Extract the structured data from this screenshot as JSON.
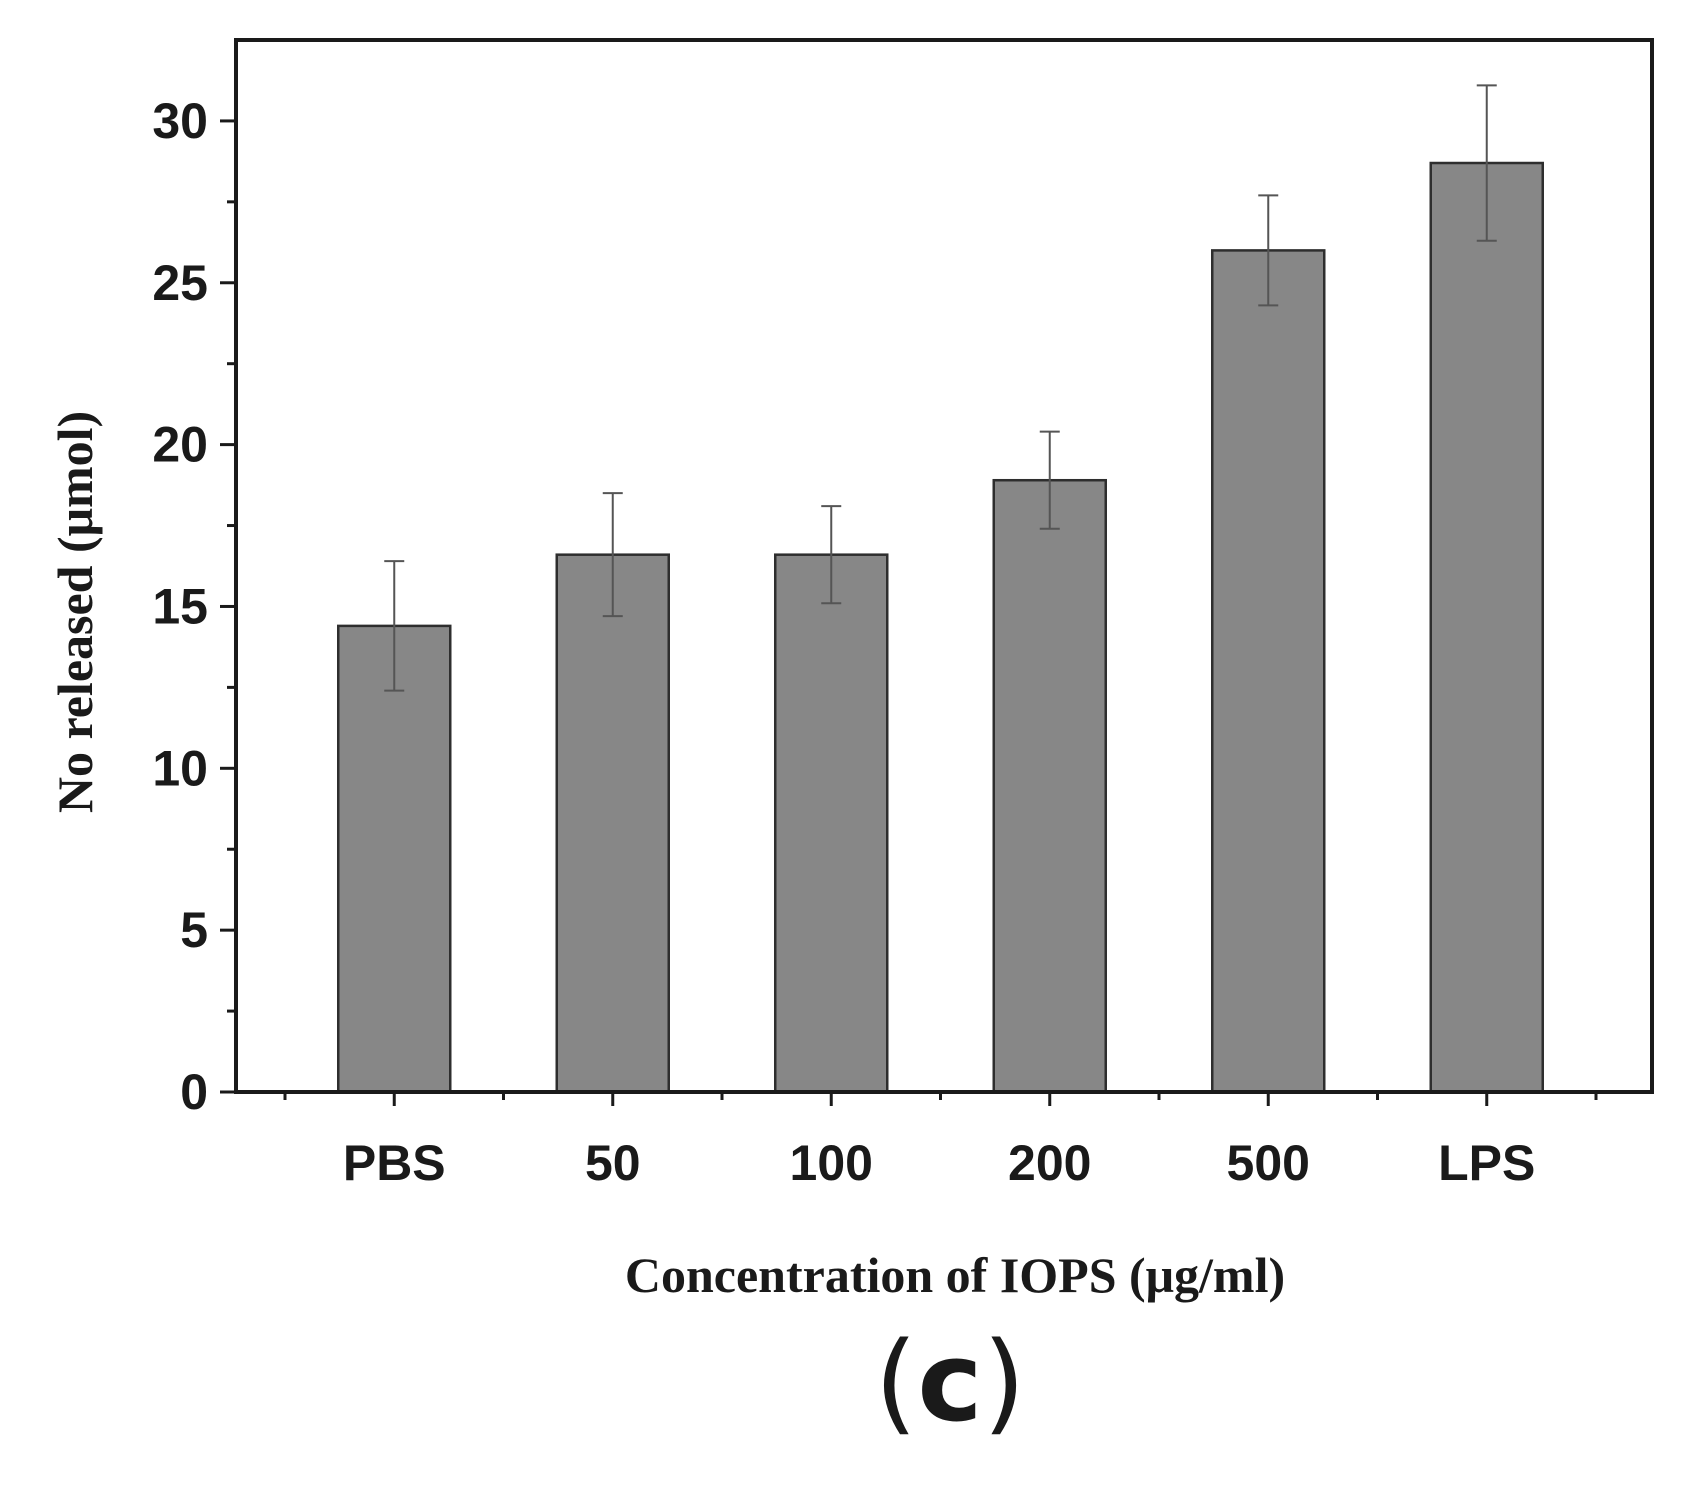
{
  "chart_data": {
    "type": "bar",
    "categories": [
      "PBS",
      "50",
      "100",
      "200",
      "500",
      "LPS"
    ],
    "values": [
      14.4,
      16.6,
      16.6,
      18.9,
      26.0,
      28.7
    ],
    "errors": [
      2.0,
      1.9,
      1.5,
      1.5,
      1.7,
      2.4
    ],
    "xlabel": "Concentration of IOPS (μg/ml)",
    "ylabel": "No released (μmol)",
    "ylim": [
      0,
      32.5
    ],
    "yticks": [
      0,
      5,
      10,
      15,
      20,
      25,
      30
    ],
    "ytick_labels": [
      "0",
      "5",
      "10",
      "15",
      "20",
      "25",
      "30"
    ],
    "grid": false,
    "legend": "none",
    "bar_color": "#878787",
    "bar_edge_color": "#2e2e2e",
    "error_bar_color": "#555555",
    "axis_color": "#1a1a1a"
  },
  "figure": {
    "panel_label_open": "(",
    "panel_label_letter": "c",
    "panel_label_close": ")"
  }
}
